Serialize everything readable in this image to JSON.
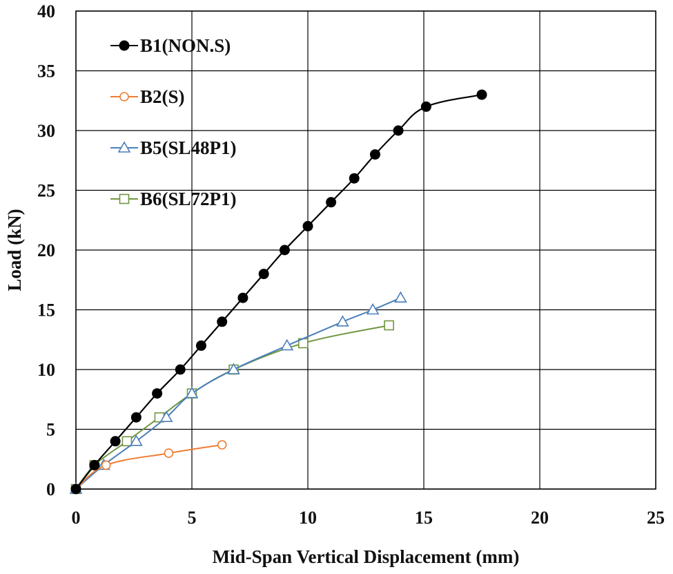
{
  "chart_data": {
    "type": "line",
    "title": "",
    "xlabel": "Mid-Span Vertical Displacement (mm)",
    "ylabel": "Load (kN)",
    "xlim": [
      0,
      25
    ],
    "ylim": [
      0,
      40
    ],
    "x_ticks": [
      "0",
      "5",
      "10",
      "15",
      "20",
      "25"
    ],
    "y_ticks": [
      "0",
      "5",
      "10",
      "15",
      "20",
      "25",
      "30",
      "35",
      "40"
    ],
    "x_tick_values": [
      0,
      5,
      10,
      15,
      20,
      25
    ],
    "y_tick_values": [
      0,
      5,
      10,
      15,
      20,
      25,
      30,
      35,
      40
    ],
    "grid": true,
    "legend_position": "top-left",
    "series": [
      {
        "name": "B1(NON.S)",
        "color": "#000000",
        "marker": "filled-circle",
        "points": [
          [
            0,
            0
          ],
          [
            0.8,
            2
          ],
          [
            1.7,
            4
          ],
          [
            2.6,
            6
          ],
          [
            3.5,
            8
          ],
          [
            4.5,
            10
          ],
          [
            5.4,
            12
          ],
          [
            6.3,
            14
          ],
          [
            7.2,
            16
          ],
          [
            8.1,
            18
          ],
          [
            9.0,
            20
          ],
          [
            10.0,
            22
          ],
          [
            11.0,
            24
          ],
          [
            12.0,
            26
          ],
          [
            12.9,
            28
          ],
          [
            13.9,
            30
          ],
          [
            15.1,
            32
          ],
          [
            17.5,
            33
          ]
        ]
      },
      {
        "name": "B2(S)",
        "color": "#ed7d31",
        "marker": "open-circle",
        "points": [
          [
            0,
            0
          ],
          [
            1.3,
            2
          ],
          [
            4.0,
            3
          ],
          [
            6.3,
            3.7
          ]
        ]
      },
      {
        "name": "B5(SL48P1)",
        "color": "#4a7ebb",
        "marker": "open-triangle",
        "points": [
          [
            0,
            0
          ],
          [
            1.2,
            2
          ],
          [
            2.6,
            4
          ],
          [
            3.9,
            6
          ],
          [
            5.0,
            8
          ],
          [
            6.8,
            10
          ],
          [
            9.1,
            12
          ],
          [
            11.5,
            14
          ],
          [
            12.8,
            15
          ],
          [
            14.0,
            16
          ]
        ]
      },
      {
        "name": "B6(SL72P1)",
        "color": "#70963e",
        "marker": "open-square",
        "points": [
          [
            0,
            0
          ],
          [
            0.8,
            2
          ],
          [
            2.2,
            4
          ],
          [
            3.6,
            6
          ],
          [
            5.0,
            8
          ],
          [
            6.8,
            10
          ],
          [
            9.8,
            12.2
          ],
          [
            13.5,
            13.7
          ]
        ]
      }
    ]
  }
}
